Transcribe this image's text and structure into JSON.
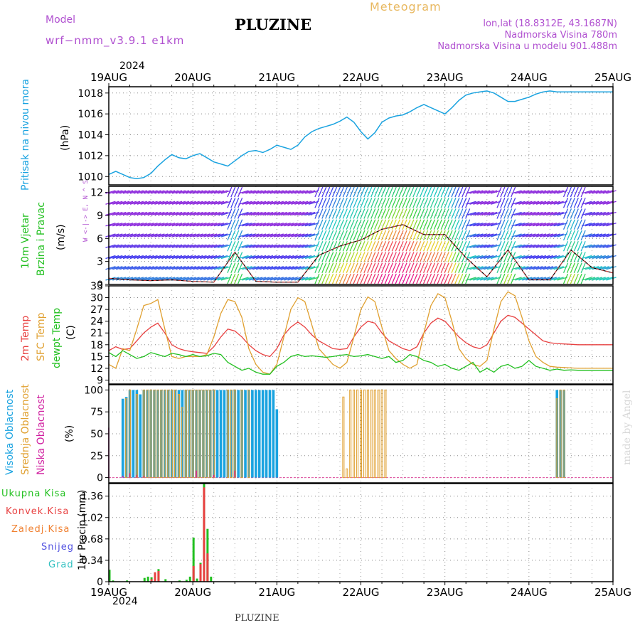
{
  "header": {
    "model_label": "Model",
    "model_name": "wrf−nmm_v3.9.1 e1km",
    "station_title": "PLUZINE",
    "meteogram_label": "Meteogram",
    "lonlat": "lon,lat (18.8312E, 43.1687N)",
    "altitude": "Nadmorska Visina 780m",
    "model_altitude": "Nadmorska Visina u modelu 901.488m",
    "footer_station": "PLUZINE",
    "watermark": "made by Angel"
  },
  "colors": {
    "pressure": "#1aa3e0",
    "temp2m": "#e84040",
    "sfc_temp": "#e0a030",
    "dewpt": "#22c020",
    "high_cloud": "#1aa3e0",
    "mid_cloud": "#e0a030",
    "low_cloud": "#d020a0",
    "precip_total": "#22c020",
    "precip_conv": "#e84040",
    "header_purple": "#b050d0",
    "header_orange": "#e8b860"
  },
  "chart_data": [
    {
      "id": "pressure",
      "type": "line",
      "ylabel": [
        "Pritisak na nivou mora",
        "(hPa)"
      ],
      "yticks": [
        1010,
        1012,
        1014,
        1016,
        1018
      ],
      "ylim": [
        1009.2,
        1018.6
      ],
      "xlim": [
        0,
        144
      ],
      "grid": true,
      "x": [
        0,
        2,
        4,
        6,
        8,
        10,
        12,
        14,
        16,
        18,
        20,
        22,
        24,
        26,
        28,
        30,
        32,
        34,
        36,
        38,
        40,
        42,
        44,
        46,
        48,
        50,
        52,
        54,
        56,
        58,
        60,
        62,
        64,
        66,
        68,
        70,
        72,
        74,
        76,
        78,
        80,
        82,
        84,
        86,
        88,
        90,
        92,
        94,
        96,
        98,
        100,
        102,
        104,
        106,
        108,
        110,
        112,
        114,
        116,
        118,
        120,
        122,
        124,
        126,
        128,
        130,
        132,
        134,
        136,
        138,
        140,
        142,
        144
      ],
      "series": [
        {
          "values": [
            1010.2,
            1010.5,
            1010.2,
            1009.9,
            1009.8,
            1009.9,
            1010.3,
            1011.0,
            1011.6,
            1012.1,
            1011.8,
            1011.7,
            1012.0,
            1012.2,
            1011.8,
            1011.4,
            1011.2,
            1011.0,
            1011.5,
            1012.0,
            1012.4,
            1012.5,
            1012.3,
            1012.6,
            1013.0,
            1012.8,
            1012.6,
            1013.0,
            1013.8,
            1014.3,
            1014.6,
            1014.8,
            1015.0,
            1015.3,
            1015.7,
            1015.2,
            1014.3,
            1013.6,
            1014.2,
            1015.2,
            1015.6,
            1015.8,
            1015.9,
            1016.2,
            1016.6,
            1016.9,
            1016.6,
            1016.3,
            1016.0,
            1016.6,
            1017.3,
            1017.8,
            1018.0,
            1018.1,
            1018.2,
            1018.0,
            1017.6,
            1017.2,
            1017.2,
            1017.4,
            1017.6,
            1017.9,
            1018.1,
            1018.2,
            1018.1,
            1018.1,
            1018.1,
            1018.1,
            1018.1,
            1018.1,
            1018.1,
            1018.1,
            1018.1
          ]
        }
      ]
    },
    {
      "id": "wind",
      "type": "scatter",
      "ylabel": [
        "10m Vjetar",
        "Brzina i Pravac",
        "(m/s)"
      ],
      "direction_key": "W <-|-> E, N ^ S",
      "yticks": [
        0,
        3,
        6,
        9,
        12
      ],
      "ylim": [
        0,
        12.8
      ],
      "xlim": [
        0,
        144
      ],
      "grid": true,
      "x": [
        0,
        6,
        12,
        18,
        24,
        30,
        36,
        42,
        48,
        54,
        60,
        66,
        72,
        78,
        84,
        90,
        96,
        102,
        108,
        114,
        120,
        126,
        132,
        138,
        144
      ],
      "series": [
        {
          "values": [
            0.8,
            0.6,
            0.5,
            0.6,
            0.4,
            0.3,
            4.2,
            0.4,
            0.3,
            0.3,
            3.8,
            5.0,
            5.8,
            7.2,
            7.8,
            6.5,
            6.5,
            3.5,
            1.0,
            4.5,
            0.6,
            0.6,
            4.5,
            2.2,
            1.5
          ]
        }
      ]
    },
    {
      "id": "temperature",
      "type": "line",
      "ylabel": [
        "2m Temp",
        "SFC Temp",
        "dewpt Temp",
        "(C)"
      ],
      "yticks": [
        9,
        12,
        15,
        18,
        21,
        24,
        27,
        30,
        33
      ],
      "ylim": [
        8,
        33
      ],
      "xlim": [
        0,
        144
      ],
      "grid": true,
      "x": [
        0,
        2,
        4,
        6,
        8,
        10,
        12,
        14,
        16,
        18,
        20,
        22,
        24,
        26,
        28,
        30,
        32,
        34,
        36,
        38,
        40,
        42,
        44,
        46,
        48,
        50,
        52,
        54,
        56,
        58,
        60,
        62,
        64,
        66,
        68,
        70,
        72,
        74,
        76,
        78,
        80,
        82,
        84,
        86,
        88,
        90,
        92,
        94,
        96,
        98,
        100,
        102,
        104,
        106,
        108,
        110,
        112,
        114,
        116,
        118,
        120,
        122,
        124,
        126,
        128,
        130,
        132,
        134,
        136,
        138,
        140,
        142,
        144
      ],
      "series": [
        {
          "name": "2m Temp",
          "values": [
            16.5,
            17.5,
            16.8,
            17.0,
            19.0,
            21.0,
            22.5,
            23.5,
            21.0,
            18.0,
            17.0,
            16.5,
            16.2,
            16.0,
            15.8,
            17.5,
            20.0,
            22.0,
            21.5,
            20.0,
            18.0,
            16.5,
            15.5,
            15.0,
            17.0,
            20.5,
            22.5,
            23.8,
            22.5,
            20.5,
            19.0,
            18.0,
            17.0,
            16.8,
            17.0,
            20.0,
            22.5,
            24.0,
            23.5,
            21.0,
            19.0,
            18.0,
            17.0,
            16.5,
            17.5,
            21.0,
            23.5,
            24.8,
            24.0,
            22.0,
            20.0,
            18.5,
            17.5,
            17.0,
            18.0,
            21.0,
            24.0,
            25.5,
            25.0,
            23.5,
            22.0,
            20.5,
            19.0,
            18.5,
            18.3,
            18.2,
            18.1,
            18.0,
            18.0,
            18.0,
            18.0,
            18.0,
            18.0
          ]
        },
        {
          "name": "SFC Temp",
          "values": [
            13.0,
            12.0,
            17.0,
            16.5,
            22.0,
            28.0,
            28.5,
            29.5,
            22.0,
            15.0,
            14.5,
            15.0,
            15.0,
            15.0,
            15.5,
            20.0,
            26.0,
            29.5,
            29.0,
            25.0,
            17.0,
            13.0,
            11.0,
            10.5,
            13.0,
            20.0,
            27.0,
            30.0,
            29.0,
            23.0,
            17.0,
            15.0,
            13.0,
            12.0,
            13.5,
            20.0,
            27.0,
            30.2,
            29.0,
            22.5,
            16.5,
            14.5,
            13.0,
            12.0,
            13.0,
            21.0,
            28.0,
            31.0,
            30.0,
            24.0,
            17.0,
            14.5,
            13.0,
            12.5,
            14.0,
            22.0,
            29.0,
            31.5,
            30.5,
            25.0,
            19.0,
            15.0,
            13.5,
            12.5,
            12.3,
            12.2,
            12.1,
            12.0,
            12.0,
            12.0,
            12.0,
            12.0,
            12.0
          ]
        },
        {
          "name": "dewpt Temp",
          "values": [
            16.0,
            15.0,
            16.5,
            15.5,
            14.5,
            15.0,
            16.0,
            15.5,
            15.0,
            15.8,
            15.5,
            15.0,
            15.5,
            15.0,
            15.2,
            15.8,
            15.5,
            13.5,
            12.5,
            11.5,
            12.0,
            11.0,
            10.5,
            10.5,
            12.5,
            13.5,
            15.0,
            15.5,
            15.0,
            15.2,
            15.0,
            14.8,
            15.0,
            15.3,
            15.5,
            15.0,
            15.2,
            15.5,
            15.0,
            14.5,
            15.0,
            13.5,
            14.0,
            15.5,
            15.0,
            14.0,
            13.5,
            12.5,
            13.0,
            12.0,
            11.5,
            12.5,
            13.5,
            11.0,
            12.0,
            11.0,
            12.5,
            13.0,
            12.0,
            12.5,
            14.0,
            12.5,
            12.0,
            11.5,
            11.8,
            11.5,
            11.6,
            11.5,
            11.5,
            11.5,
            11.5,
            11.5,
            11.5
          ]
        }
      ]
    },
    {
      "id": "cloud",
      "type": "bar",
      "ylabel": [
        "Visoka Oblacnost",
        "Srednja Oblacnost",
        "Niska Oblacnost",
        "(%)"
      ],
      "yticks": [
        0,
        25,
        50,
        75,
        100
      ],
      "ylim": [
        -6,
        106
      ],
      "xlim": [
        0,
        144
      ],
      "grid": true,
      "series": [
        {
          "name": "Visoka Oblacnost",
          "x": [
            4,
            5,
            6,
            7,
            8,
            9,
            10,
            11,
            12,
            13,
            14,
            15,
            16,
            17,
            18,
            19,
            20,
            21,
            22,
            23,
            24,
            25,
            26,
            27,
            28,
            29,
            30,
            31,
            32,
            33,
            34,
            35,
            36,
            37,
            38,
            39,
            40,
            41,
            42,
            43,
            44,
            45,
            46,
            47,
            48,
            128,
            129,
            130
          ],
          "values": [
            90,
            92,
            100,
            100,
            100,
            95,
            100,
            100,
            100,
            100,
            100,
            100,
            100,
            100,
            100,
            100,
            100,
            100,
            100,
            100,
            100,
            100,
            100,
            100,
            100,
            100,
            100,
            100,
            100,
            100,
            100,
            100,
            100,
            100,
            100,
            100,
            100,
            100,
            100,
            100,
            100,
            100,
            100,
            100,
            78,
            100,
            100,
            100
          ]
        },
        {
          "name": "Srednja Oblacnost",
          "x": [
            5,
            6,
            8,
            10,
            11,
            12,
            13,
            14,
            15,
            16,
            17,
            18,
            19,
            20,
            21,
            22,
            23,
            24,
            25,
            26,
            27,
            28,
            29,
            30,
            34,
            35,
            36,
            38,
            40,
            67,
            68,
            69,
            70,
            71,
            72,
            73,
            74,
            75,
            76,
            77,
            78,
            79,
            128,
            129,
            130
          ],
          "values": [
            90,
            100,
            95,
            100,
            100,
            100,
            100,
            100,
            100,
            100,
            100,
            100,
            100,
            95,
            80,
            100,
            100,
            100,
            100,
            100,
            100,
            100,
            100,
            100,
            100,
            100,
            100,
            100,
            100,
            92,
            10,
            100,
            100,
            100,
            100,
            100,
            100,
            100,
            100,
            100,
            100,
            100,
            90,
            100,
            100
          ]
        },
        {
          "name": "Niska Oblacnost",
          "x": [
            0,
            4,
            6,
            8,
            10,
            25,
            30,
            36
          ],
          "values": [
            57,
            2,
            5,
            3,
            2,
            8,
            3,
            8
          ]
        }
      ]
    },
    {
      "id": "precip",
      "type": "bar",
      "ylabel": [
        "1hr Precip (mm)"
      ],
      "yticks": [
        0,
        0.34,
        0.68,
        1.02,
        1.36
      ],
      "ylim": [
        0,
        1.56
      ],
      "xlim": [
        0,
        144
      ],
      "grid": true,
      "series": [
        {
          "name": "Ukupna Kisa",
          "x": [
            0,
            1,
            5,
            10,
            11,
            12,
            13,
            14,
            16,
            20,
            22,
            23,
            24,
            25,
            26,
            27,
            28,
            29
          ],
          "values": [
            0.19,
            0.02,
            0.02,
            0.06,
            0.08,
            0.07,
            0.12,
            0.2,
            0.04,
            0.02,
            0.03,
            0.08,
            0.7,
            0.05,
            0.3,
            1.56,
            0.84,
            0.08
          ]
        },
        {
          "name": "Konvek.Kisa",
          "x": [
            12,
            13,
            14,
            24,
            26,
            27,
            28
          ],
          "values": [
            0.04,
            0.15,
            0.17,
            0.25,
            0.28,
            1.5,
            0.45
          ]
        }
      ],
      "legend": [
        "Ukupna Kisa",
        "Konvek.Kisa",
        "Zaledj.Kisa",
        "Snijeg",
        "Grad"
      ]
    }
  ],
  "xaxis": {
    "year": "2024",
    "ticks": [
      {
        "pos": 0,
        "label": "19AUG"
      },
      {
        "pos": 24,
        "label": "20AUG"
      },
      {
        "pos": 48,
        "label": "21AUG"
      },
      {
        "pos": 72,
        "label": "22AUG"
      },
      {
        "pos": 96,
        "label": "23AUG"
      },
      {
        "pos": 120,
        "label": "24AUG"
      },
      {
        "pos": 144,
        "label": "25AUG"
      }
    ]
  },
  "legend_colors": {
    "Ukupna Kisa": "#22c020",
    "Konvek.Kisa": "#e84040",
    "Zaledj.Kisa": "#f08030",
    "Snijeg": "#5050e0",
    "Grad": "#30c0c0"
  }
}
